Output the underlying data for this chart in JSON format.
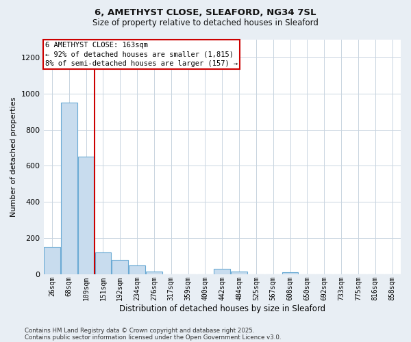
{
  "title1": "6, AMETHYST CLOSE, SLEAFORD, NG34 7SL",
  "title2": "Size of property relative to detached houses in Sleaford",
  "xlabel": "Distribution of detached houses by size in Sleaford",
  "ylabel": "Number of detached properties",
  "categories": [
    "26sqm",
    "68sqm",
    "109sqm",
    "151sqm",
    "192sqm",
    "234sqm",
    "276sqm",
    "317sqm",
    "359sqm",
    "400sqm",
    "442sqm",
    "484sqm",
    "525sqm",
    "567sqm",
    "608sqm",
    "650sqm",
    "692sqm",
    "733sqm",
    "775sqm",
    "816sqm",
    "858sqm"
  ],
  "values": [
    150,
    950,
    650,
    120,
    80,
    50,
    15,
    0,
    0,
    0,
    30,
    15,
    0,
    0,
    10,
    0,
    0,
    0,
    0,
    0,
    0
  ],
  "bar_color": "#c8dcee",
  "bar_edge_color": "#6aaad4",
  "vline_x": 3.0,
  "vline_color": "#cc0000",
  "annotation_text": "6 AMETHYST CLOSE: 163sqm\n← 92% of detached houses are smaller (1,815)\n8% of semi-detached houses are larger (157) →",
  "annotation_box_color": "#cc0000",
  "annotation_text_color": "#000000",
  "ylim": [
    0,
    1300
  ],
  "yticks": [
    0,
    200,
    400,
    600,
    800,
    1000,
    1200
  ],
  "footer1": "Contains HM Land Registry data © Crown copyright and database right 2025.",
  "footer2": "Contains public sector information licensed under the Open Government Licence v3.0.",
  "bg_color": "#e8eef4",
  "plot_bg_color": "#ffffff",
  "grid_color": "#c8d4e0"
}
